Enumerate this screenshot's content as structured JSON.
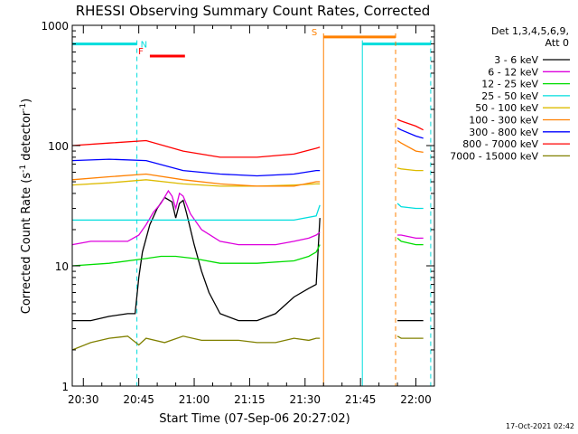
{
  "chart_data": {
    "type": "line",
    "title": "RHESSI Observing Summary Count Rates, Corrected",
    "xlabel": "Start Time (07-Sep-06 20:27:02)",
    "ylabel": "Corrected Count Rate (s",
    "ylabel_sup1": "-1",
    "ylabel_mid": " detector",
    "ylabel_sup2": "-1",
    "ylabel_end": ")",
    "x_unit": "minutes after 20:27:02",
    "xlim": [
      0,
      98
    ],
    "yscale": "log",
    "ylim": [
      1,
      1000
    ],
    "x_ticks": [
      {
        "label": "20:30",
        "value": 3
      },
      {
        "label": "20:45",
        "value": 18
      },
      {
        "label": "21:00",
        "value": 33
      },
      {
        "label": "21:15",
        "value": 48
      },
      {
        "label": "21:30",
        "value": 63
      },
      {
        "label": "21:45",
        "value": 78
      },
      {
        "label": "22:00",
        "value": 93
      }
    ],
    "y_ticks": [
      {
        "label": "1",
        "value": 1
      },
      {
        "label": "10",
        "value": 10
      },
      {
        "label": "100",
        "value": 100
      },
      {
        "label": "1000",
        "value": 1000
      }
    ],
    "legend": {
      "placement": "right",
      "header": [
        "Det 1,3,4,5,6,9,",
        "Att 0"
      ]
    },
    "gaps": [
      [
        68,
        88
      ]
    ],
    "series": [
      {
        "name": "3 - 6 keV",
        "color": "#000000",
        "x": [
          0,
          5,
          10,
          15,
          17,
          18,
          19,
          21,
          23,
          25,
          27,
          28,
          29,
          30,
          31,
          33,
          35,
          37,
          40,
          45,
          50,
          55,
          60,
          64,
          66,
          67,
          88,
          89,
          90,
          93,
          95
        ],
        "y": [
          3.5,
          3.5,
          3.8,
          4,
          4,
          8,
          13,
          22,
          30,
          37,
          34,
          25,
          33,
          35,
          27,
          15,
          9,
          6,
          4,
          3.5,
          3.5,
          4,
          5.5,
          6.5,
          7,
          25,
          3.5,
          3.5,
          3.5,
          3.5,
          3.5
        ]
      },
      {
        "name": "6 - 12 keV",
        "color": "#dd00dd",
        "x": [
          0,
          5,
          10,
          15,
          18,
          20,
          22,
          24,
          26,
          27,
          28,
          29,
          30,
          32,
          35,
          40,
          45,
          50,
          55,
          60,
          64,
          66,
          67,
          88,
          89,
          93,
          95
        ],
        "y": [
          15,
          16,
          16,
          16,
          18,
          22,
          28,
          33,
          42,
          38,
          30,
          40,
          38,
          27,
          20,
          16,
          15,
          15,
          15,
          16,
          17,
          18,
          19,
          18,
          18,
          17,
          17
        ]
      },
      {
        "name": "12 - 25 keV",
        "color": "#00dd00",
        "x": [
          0,
          10,
          20,
          24,
          28,
          33,
          40,
          50,
          60,
          64,
          66,
          67,
          88,
          89,
          93,
          95
        ],
        "y": [
          10,
          10.5,
          11.5,
          12,
          12,
          11.5,
          10.5,
          10.5,
          11,
          12,
          13,
          15,
          17,
          16,
          15,
          15
        ]
      },
      {
        "name": "25 - 50 keV",
        "color": "#00dddd",
        "x": [
          0,
          10,
          20,
          30,
          40,
          50,
          60,
          66,
          67,
          88,
          89,
          93,
          95
        ],
        "y": [
          24,
          24,
          24,
          24,
          24,
          24,
          24,
          26,
          32,
          33,
          31,
          30,
          30
        ]
      },
      {
        "name": "50 - 100 keV",
        "color": "#ddbb00",
        "x": [
          0,
          10,
          20,
          30,
          40,
          50,
          60,
          66,
          67,
          88,
          89,
          93,
          95
        ],
        "y": [
          47,
          49,
          52,
          48,
          46,
          46,
          47,
          48,
          48,
          65,
          64,
          62,
          62
        ]
      },
      {
        "name": "100 - 300 keV",
        "color": "#ff8000",
        "x": [
          0,
          10,
          20,
          30,
          40,
          50,
          60,
          66,
          67,
          88,
          89,
          93,
          95
        ],
        "y": [
          52,
          55,
          58,
          52,
          48,
          46,
          46,
          50,
          50,
          110,
          105,
          90,
          88
        ]
      },
      {
        "name": "300 - 800 keV",
        "color": "#0000ff",
        "x": [
          0,
          10,
          20,
          30,
          40,
          50,
          60,
          66,
          67,
          88,
          89,
          93,
          95
        ],
        "y": [
          75,
          77,
          75,
          62,
          58,
          56,
          58,
          62,
          62,
          140,
          135,
          120,
          115
        ]
      },
      {
        "name": "800 - 7000 keV",
        "color": "#ff0000",
        "x": [
          0,
          10,
          20,
          30,
          40,
          50,
          60,
          66,
          67,
          88,
          89,
          93,
          95
        ],
        "y": [
          100,
          105,
          110,
          90,
          80,
          80,
          85,
          95,
          97,
          165,
          160,
          145,
          135
        ]
      },
      {
        "name": "7000 - 15000 keV",
        "color": "#808000",
        "x": [
          0,
          5,
          10,
          15,
          18,
          20,
          25,
          30,
          35,
          40,
          45,
          50,
          55,
          60,
          64,
          66,
          67,
          88,
          89,
          93,
          95
        ],
        "y": [
          2,
          2.3,
          2.5,
          2.6,
          2.2,
          2.5,
          2.3,
          2.6,
          2.4,
          2.4,
          2.4,
          2.3,
          2.3,
          2.5,
          2.4,
          2.5,
          2.5,
          2.6,
          2.5,
          2.5,
          2.5
        ]
      }
    ],
    "annotations": [
      {
        "label": "N",
        "color": "#00dddd",
        "type": "flag-bar",
        "x_start": 0,
        "x_end": 17.5,
        "y": 700,
        "bracket_left": true,
        "bracket_right": true
      },
      {
        "label": "",
        "color": "#00dddd",
        "type": "flag-bar",
        "x_start": 78.5,
        "x_end": 97,
        "y": 700,
        "bracket_left": true,
        "bracket_right": true
      },
      {
        "label": "F",
        "color": "#ff0000",
        "type": "flag-bar",
        "x_start": 21,
        "x_end": 30.5,
        "y": 555,
        "bracket_left": false,
        "bracket_right": false
      },
      {
        "label": "S",
        "color": "#ff8000",
        "type": "flag-bar",
        "x_start": 68,
        "x_end": 87.5,
        "y": 800,
        "bracket_left": true,
        "bracket_right": true
      }
    ],
    "footer": "17-Oct-2021 02:42"
  }
}
